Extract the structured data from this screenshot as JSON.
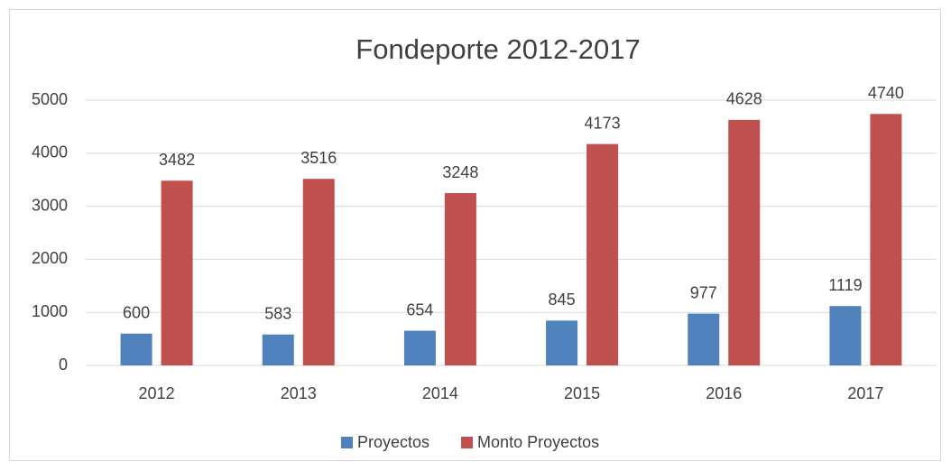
{
  "chart_data": {
    "type": "bar",
    "title": "Fondeporte 2012-2017",
    "categories": [
      "2012",
      "2013",
      "2014",
      "2015",
      "2016",
      "2017"
    ],
    "series": [
      {
        "name": "Proyectos",
        "color": "#4f81bd",
        "values": [
          600,
          583,
          654,
          845,
          977,
          1119
        ]
      },
      {
        "name": "Monto Proyectos",
        "color": "#c0504d",
        "values": [
          3482,
          3516,
          3248,
          4173,
          4628,
          4740
        ]
      }
    ],
    "ylim": [
      0,
      5000
    ],
    "yticks": [
      0,
      1000,
      2000,
      3000,
      4000,
      5000
    ],
    "grid": true,
    "legend": "bottom"
  }
}
